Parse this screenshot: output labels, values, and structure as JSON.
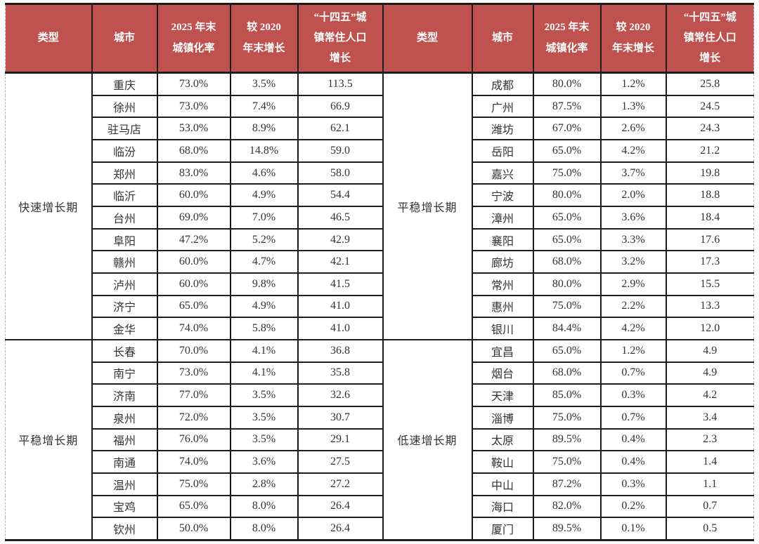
{
  "colors": {
    "header_bg": "#BF514F",
    "header_text": "#FFFFFF",
    "body_text": "#333333",
    "grid_line": "#1D1D1D",
    "page_edge_dash": "#B3B3B3"
  },
  "table": {
    "header_labels": {
      "type": "类型",
      "city": "城市",
      "rate": "2025 年末\n城镇化率",
      "growth": "较 2020\n年末增长",
      "population": "“十四五”城\n镇常住人口\n增长"
    },
    "halves": [
      {
        "side": "left",
        "sections": [
          {
            "type_label": "快速增长期",
            "rows": [
              [
                "重庆",
                "73.0%",
                "3.5%",
                "113.5"
              ],
              [
                "徐州",
                "73.0%",
                "7.4%",
                "66.9"
              ],
              [
                "驻马店",
                "53.0%",
                "8.9%",
                "62.1"
              ],
              [
                "临汾",
                "68.0%",
                "14.8%",
                "59.0"
              ],
              [
                "郑州",
                "83.0%",
                "4.6%",
                "58.0"
              ],
              [
                "临沂",
                "60.0%",
                "4.9%",
                "54.4"
              ],
              [
                "台州",
                "69.0%",
                "7.0%",
                "46.5"
              ],
              [
                "阜阳",
                "47.2%",
                "5.2%",
                "42.9"
              ],
              [
                "赣州",
                "60.0%",
                "4.7%",
                "42.1"
              ],
              [
                "泸州",
                "60.0%",
                "9.8%",
                "41.5"
              ],
              [
                "济宁",
                "65.0%",
                "4.9%",
                "41.0"
              ],
              [
                "金华",
                "74.0%",
                "5.8%",
                "41.0"
              ]
            ]
          },
          {
            "type_label": "平稳增长期",
            "rows": [
              [
                "长春",
                "70.0%",
                "4.1%",
                "36.8"
              ],
              [
                "南宁",
                "73.0%",
                "4.1%",
                "35.8"
              ],
              [
                "济南",
                "77.0%",
                "3.5%",
                "32.6"
              ],
              [
                "泉州",
                "72.0%",
                "3.5%",
                "30.7"
              ],
              [
                "福州",
                "76.0%",
                "3.5%",
                "29.1"
              ],
              [
                "南通",
                "74.0%",
                "3.6%",
                "27.5"
              ],
              [
                "温州",
                "75.0%",
                "2.8%",
                "27.2"
              ],
              [
                "宝鸡",
                "65.0%",
                "8.0%",
                "26.4"
              ],
              [
                "钦州",
                "50.0%",
                "8.0%",
                "26.4"
              ]
            ]
          }
        ]
      },
      {
        "side": "right",
        "sections": [
          {
            "type_label": "平稳增长期",
            "rows": [
              [
                "成都",
                "80.0%",
                "1.2%",
                "25.8"
              ],
              [
                "广州",
                "87.5%",
                "1.3%",
                "24.5"
              ],
              [
                "潍坊",
                "67.0%",
                "2.6%",
                "24.3"
              ],
              [
                "岳阳",
                "65.0%",
                "4.2%",
                "21.2"
              ],
              [
                "嘉兴",
                "75.0%",
                "3.7%",
                "19.8"
              ],
              [
                "宁波",
                "80.0%",
                "2.0%",
                "18.8"
              ],
              [
                "漳州",
                "65.0%",
                "3.6%",
                "18.4"
              ],
              [
                "襄阳",
                "65.0%",
                "3.3%",
                "17.6"
              ],
              [
                "廊坊",
                "68.0%",
                "3.2%",
                "17.3"
              ],
              [
                "常州",
                "80.0%",
                "2.9%",
                "15.5"
              ],
              [
                "惠州",
                "75.0%",
                "2.2%",
                "13.3"
              ],
              [
                "银川",
                "84.4%",
                "4.2%",
                "12.0"
              ]
            ]
          },
          {
            "type_label": "低速增长期",
            "rows": [
              [
                "宜昌",
                "65.0%",
                "1.2%",
                "4.9"
              ],
              [
                "烟台",
                "68.0%",
                "0.7%",
                "4.9"
              ],
              [
                "天津",
                "85.0%",
                "0.3%",
                "4.2"
              ],
              [
                "淄博",
                "75.0%",
                "0.7%",
                "3.4"
              ],
              [
                "太原",
                "89.5%",
                "0.4%",
                "2.3"
              ],
              [
                "鞍山",
                "75.0%",
                "0.4%",
                "1.4"
              ],
              [
                "中山",
                "87.2%",
                "0.3%",
                "1.1"
              ],
              [
                "海口",
                "82.0%",
                "0.2%",
                "0.7"
              ],
              [
                "厦门",
                "89.5%",
                "0.1%",
                "0.5"
              ]
            ]
          }
        ]
      }
    ]
  }
}
